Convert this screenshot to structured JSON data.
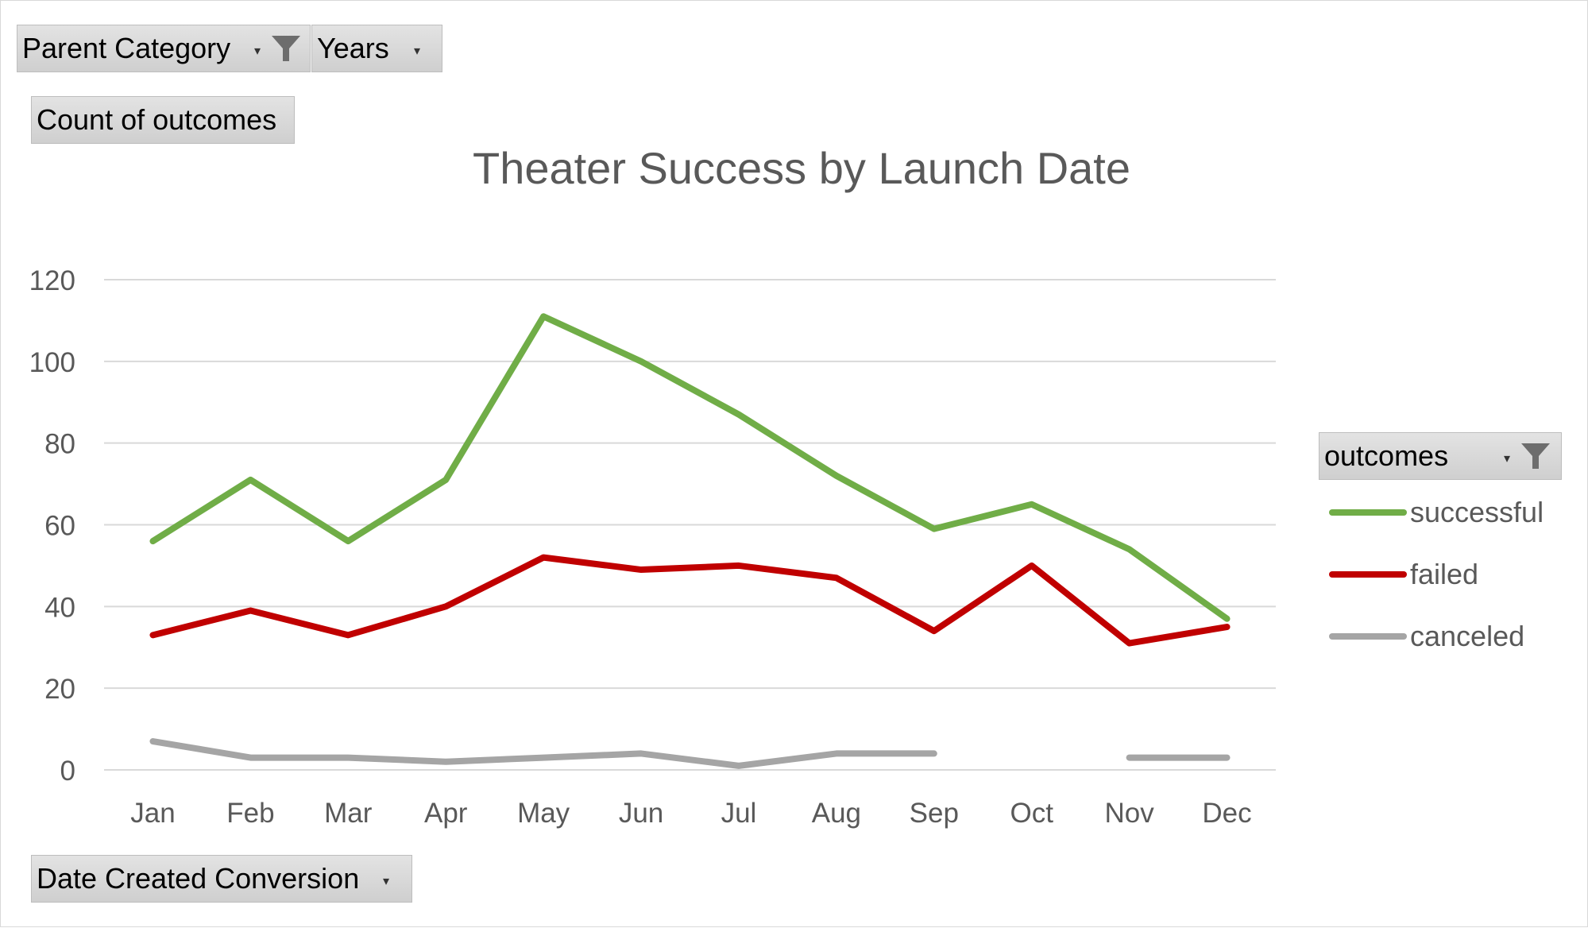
{
  "filters": {
    "parent_category": "Parent Category",
    "years": "Years",
    "values_field": "Count of outcomes",
    "axis_field": "Date Created Conversion",
    "legend_field": "outcomes"
  },
  "icons": {
    "filter": "funnel-filter-icon",
    "dropdown": "dropdown-arrow-icon"
  },
  "chart_data": {
    "type": "line",
    "title": "Theater Success by Launch Date",
    "xlabel": "",
    "ylabel": "",
    "categories": [
      "Jan",
      "Feb",
      "Mar",
      "Apr",
      "May",
      "Jun",
      "Jul",
      "Aug",
      "Sep",
      "Oct",
      "Nov",
      "Dec"
    ],
    "ylim": [
      0,
      120
    ],
    "yticks": [
      0,
      20,
      40,
      60,
      80,
      100,
      120
    ],
    "grid": true,
    "legend_position": "right",
    "series": [
      {
        "name": "successful",
        "color": "#70ad47",
        "values": [
          56,
          71,
          56,
          71,
          111,
          100,
          87,
          72,
          59,
          65,
          54,
          37
        ]
      },
      {
        "name": "failed",
        "color": "#c00000",
        "values": [
          33,
          39,
          33,
          40,
          52,
          49,
          50,
          47,
          34,
          50,
          31,
          35
        ]
      },
      {
        "name": "canceled",
        "color": "#a5a5a5",
        "values": [
          7,
          3,
          3,
          2,
          3,
          4,
          1,
          4,
          4,
          null,
          3,
          3
        ]
      }
    ]
  }
}
